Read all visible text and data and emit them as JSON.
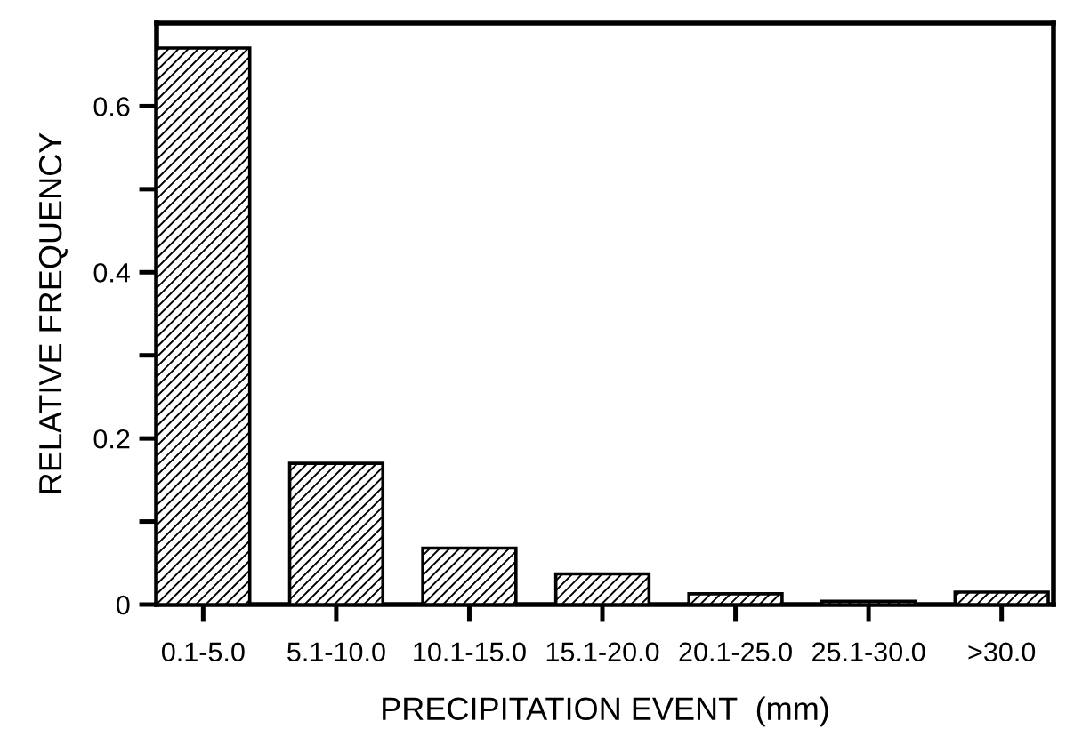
{
  "chart_data": {
    "type": "bar",
    "xlabel": "PRECIPITATION EVENT  (mm)",
    "ylabel": "RELATIVE FREQUENCY",
    "categories": [
      "0.1-5.0",
      "5.1-10.0",
      "10.1-15.0",
      "15.1-20.0",
      "20.1-25.0",
      "25.1-30.0",
      ">30.0"
    ],
    "values": [
      0.67,
      0.17,
      0.068,
      0.037,
      0.013,
      0.004,
      0.015
    ],
    "color": "#000000",
    "ylim": [
      0,
      0.7
    ],
    "yticks": [
      0,
      {
        "value": 0.1,
        "label": null
      },
      0.2,
      {
        "value": 0.3,
        "label": null
      },
      0.4,
      {
        "value": 0.5,
        "label": null
      },
      0.6
    ],
    "grid": false,
    "legend": false
  }
}
